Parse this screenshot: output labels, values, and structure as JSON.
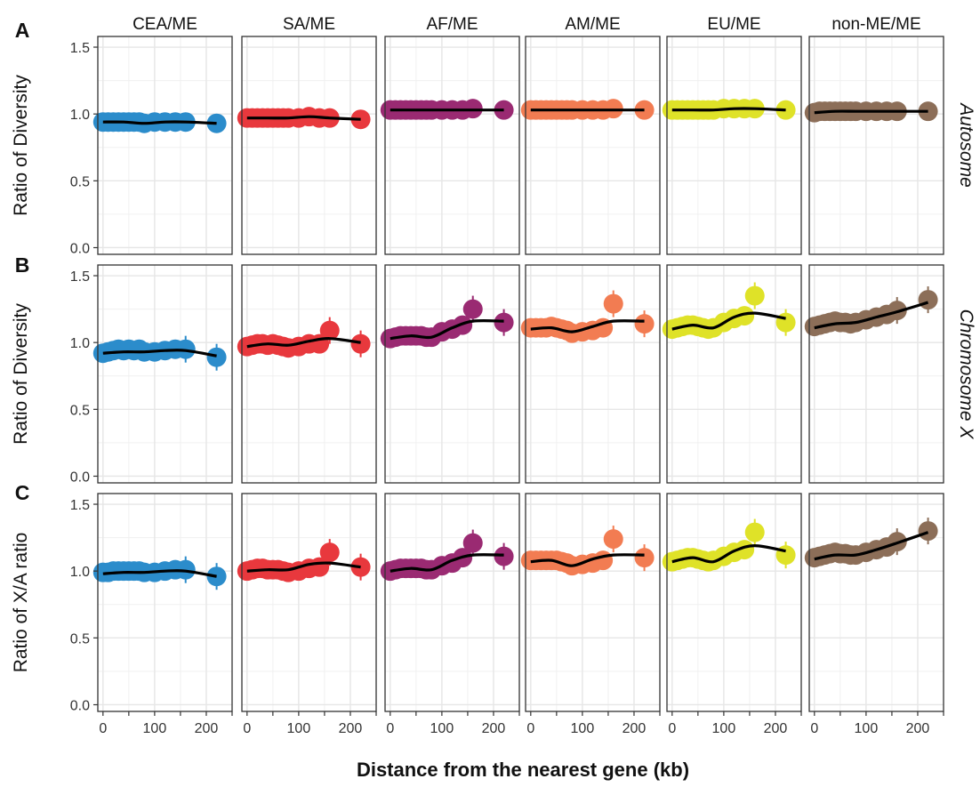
{
  "figure": {
    "xlabel": "Distance from the nearest gene (kb)",
    "panel_letters": [
      "A",
      "B",
      "C"
    ],
    "row_ylabels": [
      "Ratio of Diversity",
      "Ratio of Diversity",
      "Ratio of X/A ratio"
    ],
    "row_strips": [
      "Autosome",
      "Chromosome X",
      ""
    ],
    "col_strips": [
      "CEA/ME",
      "SA/ME",
      "AF/ME",
      "AM/ME",
      "EU/ME",
      "non-ME/ME"
    ],
    "colors": {
      "CEA/ME": "#2b8ccb",
      "SA/ME": "#e8383d",
      "AF/ME": "#9a2a72",
      "AM/ME": "#f27c52",
      "EU/ME": "#dfe228",
      "non-ME/ME": "#8c6e58",
      "smooth_line": "#000000",
      "panel_border": "#333333",
      "grid": "#e6e6e6"
    },
    "x_ticks": [
      "0",
      "100",
      "200"
    ],
    "y_ticks": [
      "0.0",
      "0.5",
      "1.0",
      "1.5"
    ]
  },
  "chart_data": [
    {
      "type": "scatter",
      "row": "Autosome",
      "panel": "CEA/ME",
      "xlim": [
        -10,
        250
      ],
      "ylim": [
        -0.05,
        1.58
      ],
      "x": [
        0,
        10,
        20,
        30,
        40,
        50,
        60,
        70,
        80,
        100,
        120,
        140,
        160,
        220
      ],
      "values": [
        0.94,
        0.94,
        0.94,
        0.94,
        0.94,
        0.94,
        0.94,
        0.94,
        0.93,
        0.94,
        0.94,
        0.94,
        0.94,
        0.93
      ],
      "smooth": {
        "x": [
          0,
          40,
          80,
          120,
          160,
          220
        ],
        "y": [
          0.94,
          0.94,
          0.93,
          0.94,
          0.94,
          0.93
        ]
      }
    },
    {
      "type": "scatter",
      "row": "Autosome",
      "panel": "SA/ME",
      "xlim": [
        -10,
        250
      ],
      "ylim": [
        -0.05,
        1.58
      ],
      "x": [
        0,
        10,
        20,
        30,
        40,
        50,
        60,
        70,
        80,
        100,
        120,
        140,
        160,
        220
      ],
      "values": [
        0.97,
        0.97,
        0.97,
        0.97,
        0.97,
        0.97,
        0.97,
        0.97,
        0.97,
        0.97,
        0.98,
        0.97,
        0.97,
        0.96
      ],
      "smooth": {
        "x": [
          0,
          40,
          80,
          120,
          160,
          220
        ],
        "y": [
          0.97,
          0.97,
          0.97,
          0.98,
          0.97,
          0.96
        ]
      }
    },
    {
      "type": "scatter",
      "row": "Autosome",
      "panel": "AF/ME",
      "xlim": [
        -10,
        250
      ],
      "ylim": [
        -0.05,
        1.58
      ],
      "x": [
        0,
        10,
        20,
        30,
        40,
        50,
        60,
        70,
        80,
        100,
        120,
        140,
        160,
        220
      ],
      "values": [
        1.03,
        1.03,
        1.03,
        1.03,
        1.03,
        1.03,
        1.03,
        1.03,
        1.03,
        1.03,
        1.03,
        1.03,
        1.04,
        1.03
      ],
      "smooth": {
        "x": [
          0,
          40,
          80,
          120,
          160,
          220
        ],
        "y": [
          1.03,
          1.03,
          1.03,
          1.03,
          1.03,
          1.03
        ]
      }
    },
    {
      "type": "scatter",
      "row": "Autosome",
      "panel": "AM/ME",
      "xlim": [
        -10,
        250
      ],
      "ylim": [
        -0.05,
        1.58
      ],
      "x": [
        0,
        10,
        20,
        30,
        40,
        50,
        60,
        70,
        80,
        100,
        120,
        140,
        160,
        220
      ],
      "values": [
        1.03,
        1.03,
        1.03,
        1.03,
        1.03,
        1.03,
        1.03,
        1.03,
        1.03,
        1.03,
        1.03,
        1.03,
        1.04,
        1.03
      ],
      "smooth": {
        "x": [
          0,
          40,
          80,
          120,
          160,
          220
        ],
        "y": [
          1.03,
          1.03,
          1.03,
          1.03,
          1.03,
          1.03
        ]
      }
    },
    {
      "type": "scatter",
      "row": "Autosome",
      "panel": "EU/ME",
      "xlim": [
        -10,
        250
      ],
      "ylim": [
        -0.05,
        1.58
      ],
      "x": [
        0,
        10,
        20,
        30,
        40,
        50,
        60,
        70,
        80,
        100,
        120,
        140,
        160,
        220
      ],
      "values": [
        1.03,
        1.03,
        1.03,
        1.03,
        1.03,
        1.03,
        1.03,
        1.03,
        1.03,
        1.04,
        1.04,
        1.04,
        1.04,
        1.03
      ],
      "smooth": {
        "x": [
          0,
          40,
          80,
          120,
          160,
          220
        ],
        "y": [
          1.03,
          1.03,
          1.03,
          1.04,
          1.04,
          1.03
        ]
      }
    },
    {
      "type": "scatter",
      "row": "Autosome",
      "panel": "non-ME/ME",
      "xlim": [
        -10,
        250
      ],
      "ylim": [
        -0.05,
        1.58
      ],
      "x": [
        0,
        10,
        20,
        30,
        40,
        50,
        60,
        70,
        80,
        100,
        120,
        140,
        160,
        220
      ],
      "values": [
        1.01,
        1.02,
        1.02,
        1.02,
        1.02,
        1.02,
        1.02,
        1.02,
        1.02,
        1.02,
        1.02,
        1.02,
        1.02,
        1.02
      ],
      "smooth": {
        "x": [
          0,
          40,
          80,
          120,
          160,
          220
        ],
        "y": [
          1.01,
          1.02,
          1.02,
          1.02,
          1.02,
          1.02
        ]
      }
    },
    {
      "type": "scatter",
      "row": "Chromosome X",
      "panel": "CEA/ME",
      "xlim": [
        -10,
        250
      ],
      "ylim": [
        -0.05,
        1.58
      ],
      "x": [
        0,
        10,
        20,
        30,
        40,
        50,
        60,
        70,
        80,
        100,
        120,
        140,
        160,
        220
      ],
      "values": [
        0.92,
        0.93,
        0.94,
        0.95,
        0.94,
        0.95,
        0.94,
        0.95,
        0.93,
        0.93,
        0.94,
        0.95,
        0.95,
        0.89
      ],
      "smooth": {
        "x": [
          0,
          40,
          80,
          120,
          160,
          220
        ],
        "y": [
          0.92,
          0.93,
          0.93,
          0.94,
          0.94,
          0.9
        ]
      }
    },
    {
      "type": "scatter",
      "row": "Chromosome X",
      "panel": "SA/ME",
      "xlim": [
        -10,
        250
      ],
      "ylim": [
        -0.05,
        1.58
      ],
      "x": [
        0,
        10,
        20,
        30,
        40,
        50,
        60,
        70,
        80,
        100,
        120,
        140,
        160,
        220
      ],
      "values": [
        0.97,
        0.98,
        0.99,
        0.99,
        0.98,
        0.99,
        0.98,
        0.97,
        0.96,
        0.97,
        0.99,
        0.99,
        1.09,
        0.99
      ],
      "smooth": {
        "x": [
          0,
          40,
          80,
          120,
          160,
          220
        ],
        "y": [
          0.97,
          0.99,
          0.98,
          1.01,
          1.03,
          1.0
        ]
      }
    },
    {
      "type": "scatter",
      "row": "Chromosome X",
      "panel": "AF/ME",
      "xlim": [
        -10,
        250
      ],
      "ylim": [
        -0.05,
        1.58
      ],
      "x": [
        0,
        10,
        20,
        30,
        40,
        50,
        60,
        70,
        80,
        100,
        120,
        140,
        160,
        220
      ],
      "values": [
        1.03,
        1.04,
        1.05,
        1.05,
        1.05,
        1.05,
        1.05,
        1.04,
        1.04,
        1.08,
        1.1,
        1.13,
        1.25,
        1.15
      ],
      "smooth": {
        "x": [
          0,
          40,
          80,
          120,
          160,
          220
        ],
        "y": [
          1.03,
          1.05,
          1.04,
          1.11,
          1.16,
          1.16
        ]
      }
    },
    {
      "type": "scatter",
      "row": "Chromosome X",
      "panel": "AM/ME",
      "xlim": [
        -10,
        250
      ],
      "ylim": [
        -0.05,
        1.58
      ],
      "x": [
        0,
        10,
        20,
        30,
        40,
        50,
        60,
        70,
        80,
        100,
        120,
        140,
        160,
        220
      ],
      "values": [
        1.11,
        1.11,
        1.11,
        1.11,
        1.12,
        1.11,
        1.1,
        1.09,
        1.07,
        1.08,
        1.09,
        1.11,
        1.29,
        1.14
      ],
      "smooth": {
        "x": [
          0,
          40,
          80,
          120,
          160,
          220
        ],
        "y": [
          1.1,
          1.11,
          1.08,
          1.12,
          1.16,
          1.16
        ]
      }
    },
    {
      "type": "scatter",
      "row": "Chromosome X",
      "panel": "EU/ME",
      "xlim": [
        -10,
        250
      ],
      "ylim": [
        -0.05,
        1.58
      ],
      "x": [
        0,
        10,
        20,
        30,
        40,
        50,
        60,
        70,
        80,
        100,
        120,
        140,
        160,
        220
      ],
      "values": [
        1.1,
        1.11,
        1.12,
        1.13,
        1.13,
        1.12,
        1.11,
        1.1,
        1.11,
        1.15,
        1.18,
        1.2,
        1.35,
        1.15
      ],
      "smooth": {
        "x": [
          0,
          40,
          80,
          120,
          160,
          220
        ],
        "y": [
          1.1,
          1.13,
          1.11,
          1.19,
          1.22,
          1.18
        ]
      }
    },
    {
      "type": "scatter",
      "row": "Chromosome X",
      "panel": "non-ME/ME",
      "xlim": [
        -10,
        250
      ],
      "ylim": [
        -0.05,
        1.58
      ],
      "x": [
        0,
        10,
        20,
        30,
        40,
        50,
        60,
        70,
        80,
        100,
        120,
        140,
        160,
        220
      ],
      "values": [
        1.12,
        1.13,
        1.14,
        1.15,
        1.16,
        1.15,
        1.15,
        1.14,
        1.15,
        1.17,
        1.19,
        1.21,
        1.24,
        1.32
      ],
      "smooth": {
        "x": [
          0,
          40,
          80,
          120,
          160,
          220
        ],
        "y": [
          1.11,
          1.14,
          1.15,
          1.19,
          1.23,
          1.3
        ]
      }
    },
    {
      "type": "scatter",
      "row": "X/A ratio",
      "panel": "CEA/ME",
      "xlim": [
        -10,
        250
      ],
      "ylim": [
        -0.05,
        1.58
      ],
      "x": [
        0,
        10,
        20,
        30,
        40,
        50,
        60,
        70,
        80,
        100,
        120,
        140,
        160,
        220
      ],
      "values": [
        0.99,
        0.99,
        1.0,
        1.0,
        1.0,
        1.0,
        1.0,
        1.0,
        0.99,
        0.99,
        1.0,
        1.01,
        1.01,
        0.96
      ],
      "smooth": {
        "x": [
          0,
          40,
          80,
          120,
          160,
          220
        ],
        "y": [
          0.98,
          0.99,
          0.99,
          1.0,
          1.0,
          0.96
        ]
      }
    },
    {
      "type": "scatter",
      "row": "X/A ratio",
      "panel": "SA/ME",
      "xlim": [
        -10,
        250
      ],
      "ylim": [
        -0.05,
        1.58
      ],
      "x": [
        0,
        10,
        20,
        30,
        40,
        50,
        60,
        70,
        80,
        100,
        120,
        140,
        160,
        220
      ],
      "values": [
        1.0,
        1.01,
        1.02,
        1.02,
        1.01,
        1.01,
        1.01,
        1.0,
        0.99,
        1.0,
        1.02,
        1.03,
        1.14,
        1.03
      ],
      "smooth": {
        "x": [
          0,
          40,
          80,
          120,
          160,
          220
        ],
        "y": [
          1.0,
          1.01,
          1.01,
          1.05,
          1.06,
          1.03
        ]
      }
    },
    {
      "type": "scatter",
      "row": "X/A ratio",
      "panel": "AF/ME",
      "xlim": [
        -10,
        250
      ],
      "ylim": [
        -0.05,
        1.58
      ],
      "x": [
        0,
        10,
        20,
        30,
        40,
        50,
        60,
        70,
        80,
        100,
        120,
        140,
        160,
        220
      ],
      "values": [
        1.0,
        1.01,
        1.02,
        1.02,
        1.02,
        1.02,
        1.02,
        1.01,
        1.01,
        1.04,
        1.06,
        1.1,
        1.21,
        1.11
      ],
      "smooth": {
        "x": [
          0,
          40,
          80,
          120,
          160,
          220
        ],
        "y": [
          1.0,
          1.02,
          1.01,
          1.08,
          1.12,
          1.12
        ]
      }
    },
    {
      "type": "scatter",
      "row": "X/A ratio",
      "panel": "AM/ME",
      "xlim": [
        -10,
        250
      ],
      "ylim": [
        -0.05,
        1.58
      ],
      "x": [
        0,
        10,
        20,
        30,
        40,
        50,
        60,
        70,
        80,
        100,
        120,
        140,
        160,
        220
      ],
      "values": [
        1.08,
        1.08,
        1.08,
        1.08,
        1.08,
        1.08,
        1.07,
        1.06,
        1.04,
        1.05,
        1.06,
        1.08,
        1.24,
        1.1
      ],
      "smooth": {
        "x": [
          0,
          40,
          80,
          120,
          160,
          220
        ],
        "y": [
          1.07,
          1.08,
          1.04,
          1.09,
          1.12,
          1.12
        ]
      }
    },
    {
      "type": "scatter",
      "row": "X/A ratio",
      "panel": "EU/ME",
      "xlim": [
        -10,
        250
      ],
      "ylim": [
        -0.05,
        1.58
      ],
      "x": [
        0,
        10,
        20,
        30,
        40,
        50,
        60,
        70,
        80,
        100,
        120,
        140,
        160,
        220
      ],
      "values": [
        1.07,
        1.08,
        1.09,
        1.1,
        1.1,
        1.09,
        1.08,
        1.07,
        1.08,
        1.11,
        1.14,
        1.16,
        1.29,
        1.12
      ],
      "smooth": {
        "x": [
          0,
          40,
          80,
          120,
          160,
          220
        ],
        "y": [
          1.07,
          1.1,
          1.07,
          1.15,
          1.19,
          1.15
        ]
      }
    },
    {
      "type": "scatter",
      "row": "X/A ratio",
      "panel": "non-ME/ME",
      "xlim": [
        -10,
        250
      ],
      "ylim": [
        -0.05,
        1.58
      ],
      "x": [
        0,
        10,
        20,
        30,
        40,
        50,
        60,
        70,
        80,
        100,
        120,
        140,
        160,
        220
      ],
      "values": [
        1.1,
        1.11,
        1.12,
        1.13,
        1.14,
        1.13,
        1.13,
        1.12,
        1.12,
        1.14,
        1.16,
        1.18,
        1.22,
        1.3
      ],
      "smooth": {
        "x": [
          0,
          40,
          80,
          120,
          160,
          220
        ],
        "y": [
          1.09,
          1.12,
          1.12,
          1.16,
          1.21,
          1.29
        ]
      }
    }
  ]
}
